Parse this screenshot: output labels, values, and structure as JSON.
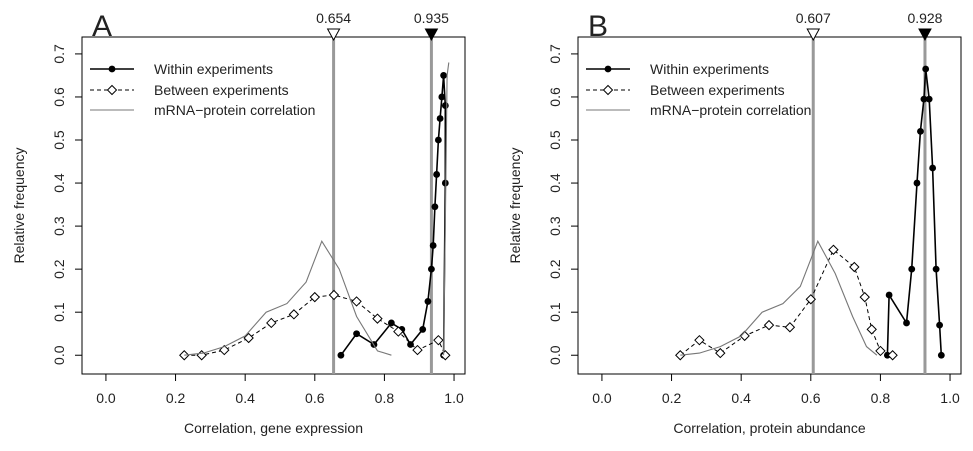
{
  "chart_data": [
    {
      "type": "line",
      "panel_label": "A",
      "xlabel": "Correlation, gene expression",
      "ylabel": "Relative frequency",
      "xlim": [
        -0.04,
        1.02
      ],
      "ylim": [
        -0.025,
        0.73
      ],
      "xticks": [
        "0.0",
        "0.2",
        "0.4",
        "0.6",
        "0.8",
        "1.0"
      ],
      "yticks": [
        "0.0",
        "0.1",
        "0.2",
        "0.3",
        "0.4",
        "0.5",
        "0.6",
        "0.7"
      ],
      "legend_position": "top-left",
      "legend": [
        "Within experiments",
        "Between experiments",
        "mRNA−protein correlation"
      ],
      "markers": [
        {
          "label": "0.654",
          "x": 0.654,
          "style": "open-triangle"
        },
        {
          "label": "0.935",
          "x": 0.935,
          "style": "filled-triangle"
        }
      ],
      "series": [
        {
          "name": "Within experiments",
          "style": "filled-circle-solid",
          "color": "#000000",
          "x": [
            0.675,
            0.72,
            0.77,
            0.82,
            0.85,
            0.875,
            0.91,
            0.925,
            0.935,
            0.94,
            0.945,
            0.95,
            0.955,
            0.96,
            0.965,
            0.97,
            0.975,
            0.975,
            0.97
          ],
          "y": [
            0.0,
            0.05,
            0.025,
            0.075,
            0.06,
            0.025,
            0.06,
            0.125,
            0.2,
            0.255,
            0.345,
            0.42,
            0.5,
            0.55,
            0.6,
            0.65,
            0.58,
            0.4,
            0.0
          ]
        },
        {
          "name": "Between experiments",
          "style": "open-diamond-dashed",
          "color": "#000000",
          "x": [
            0.225,
            0.275,
            0.34,
            0.41,
            0.475,
            0.54,
            0.6,
            0.655,
            0.72,
            0.78,
            0.84,
            0.895,
            0.955,
            0.975
          ],
          "y": [
            0.0,
            0.0,
            0.012,
            0.04,
            0.075,
            0.095,
            0.135,
            0.14,
            0.125,
            0.085,
            0.055,
            0.012,
            0.035,
            0.0
          ]
        },
        {
          "name": "mRNA−protein correlation",
          "style": "thin-line",
          "color": "#777777",
          "x": [
            0.225,
            0.28,
            0.34,
            0.4,
            0.46,
            0.52,
            0.575,
            0.62,
            0.67,
            0.72,
            0.78,
            0.82
          ],
          "y": [
            0.0,
            0.005,
            0.02,
            0.045,
            0.1,
            0.12,
            0.17,
            0.265,
            0.2,
            0.09,
            0.01,
            0.0
          ]
        },
        {
          "name": "",
          "style": "thin-line",
          "color": "#777777",
          "x": [
            0.97,
            0.975,
            0.98,
            0.985
          ],
          "y": [
            0.0,
            0.3,
            0.65,
            0.68
          ]
        }
      ]
    },
    {
      "type": "line",
      "panel_label": "B",
      "xlabel": "Correlation, protein abundance",
      "ylabel": "Relative frequency",
      "xlim": [
        -0.04,
        1.02
      ],
      "ylim": [
        -0.025,
        0.73
      ],
      "xticks": [
        "0.0",
        "0.2",
        "0.4",
        "0.6",
        "0.8",
        "1.0"
      ],
      "yticks": [
        "0.0",
        "0.1",
        "0.2",
        "0.3",
        "0.4",
        "0.5",
        "0.6",
        "0.7"
      ],
      "legend_position": "top-left",
      "legend": [
        "Within experiments",
        "Between experiments",
        "mRNA−protein correlation"
      ],
      "markers": [
        {
          "label": "0.607",
          "x": 0.607,
          "style": "open-triangle"
        },
        {
          "label": "0.928",
          "x": 0.928,
          "style": "filled-triangle"
        }
      ],
      "series": [
        {
          "name": "Within experiments",
          "style": "filled-circle-solid",
          "color": "#000000",
          "x": [
            0.82,
            0.825,
            0.875,
            0.89,
            0.905,
            0.915,
            0.925,
            0.93,
            0.94,
            0.95,
            0.96,
            0.97,
            0.975
          ],
          "y": [
            0.0,
            0.14,
            0.075,
            0.2,
            0.4,
            0.52,
            0.595,
            0.665,
            0.595,
            0.435,
            0.2,
            0.07,
            0.0
          ]
        },
        {
          "name": "Between experiments",
          "style": "open-diamond-dashed",
          "color": "#000000",
          "x": [
            0.225,
            0.28,
            0.34,
            0.41,
            0.48,
            0.54,
            0.6,
            0.665,
            0.725,
            0.755,
            0.775,
            0.8,
            0.835
          ],
          "y": [
            0.0,
            0.035,
            0.005,
            0.045,
            0.07,
            0.065,
            0.13,
            0.245,
            0.205,
            0.135,
            0.06,
            0.01,
            0.0
          ]
        },
        {
          "name": "mRNA−protein correlation",
          "style": "thin-line",
          "color": "#777777",
          "x": [
            0.225,
            0.28,
            0.34,
            0.4,
            0.46,
            0.52,
            0.57,
            0.62,
            0.67,
            0.72,
            0.76,
            0.79
          ],
          "y": [
            0.0,
            0.005,
            0.02,
            0.045,
            0.1,
            0.12,
            0.16,
            0.265,
            0.19,
            0.09,
            0.02,
            0.0
          ]
        }
      ]
    }
  ]
}
